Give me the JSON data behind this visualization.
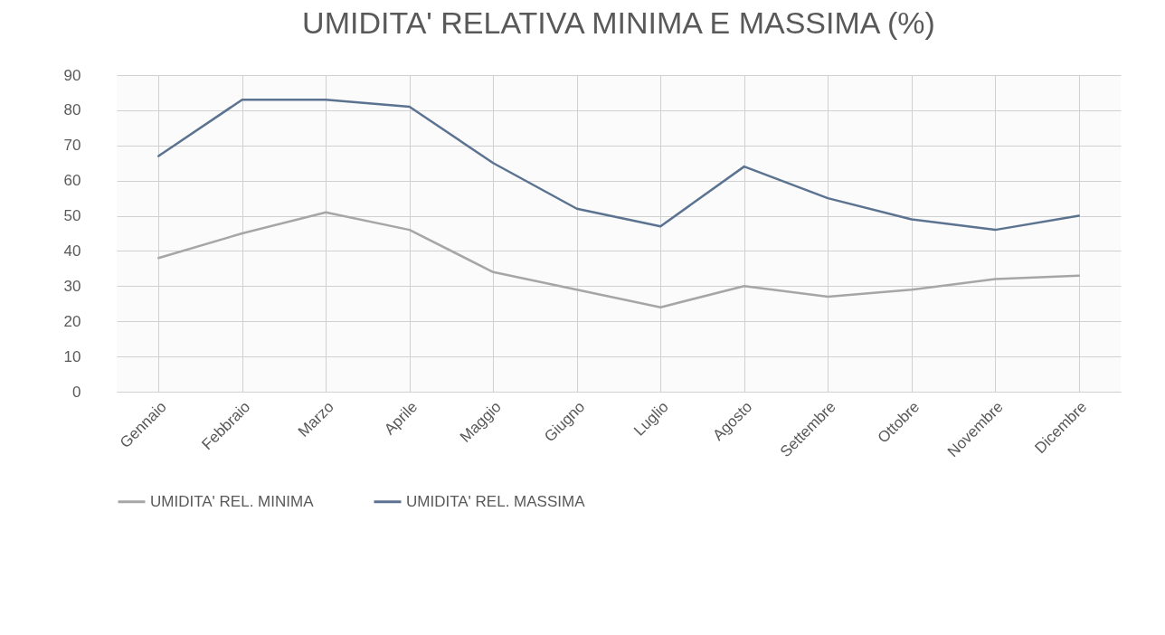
{
  "chart_data": {
    "type": "line",
    "title": "UMIDITA' RELATIVA MINIMA E MASSIMA (%)",
    "categories": [
      "Gennaio",
      "Febbraio",
      "Marzo",
      "Aprile",
      "Maggio",
      "Giugno",
      "Luglio",
      "Agosto",
      "Settembre",
      "Ottobre",
      "Novembre",
      "Dicembre"
    ],
    "series": [
      {
        "name": "UMIDITA' REL. MINIMA",
        "color": "#a6a6a6",
        "values": [
          38,
          45,
          51,
          46,
          34,
          29,
          24,
          30,
          27,
          29,
          32,
          33
        ]
      },
      {
        "name": "UMIDITA' REL. MASSIMA",
        "color": "#5b7390",
        "values": [
          67,
          83,
          83,
          81,
          65,
          52,
          47,
          64,
          55,
          49,
          46,
          50
        ]
      }
    ],
    "ylim": [
      0,
      90
    ],
    "yticks": [
      0,
      10,
      20,
      30,
      40,
      50,
      60,
      70,
      80,
      90
    ],
    "grid": true,
    "legend": "bottom"
  }
}
